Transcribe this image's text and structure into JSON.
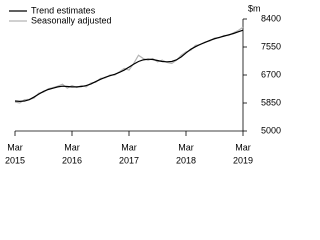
{
  "chart_data": {
    "type": "line",
    "y_label": "$m",
    "categories": [
      [
        "Mar",
        "2015"
      ],
      null,
      null,
      null,
      null,
      null,
      null,
      null,
      null,
      null,
      null,
      null,
      [
        "Mar",
        "2016"
      ],
      null,
      null,
      null,
      null,
      null,
      null,
      null,
      null,
      null,
      null,
      null,
      [
        "Mar",
        "2017"
      ],
      null,
      null,
      null,
      null,
      null,
      null,
      null,
      null,
      null,
      null,
      null,
      [
        "Mar",
        "2018"
      ],
      null,
      null,
      null,
      null,
      null,
      null,
      null,
      null,
      null,
      null,
      null,
      [
        "Mar",
        "2019"
      ]
    ],
    "series": [
      {
        "name": "Trend estimates",
        "color": "#000000",
        "values": [
          5910,
          5900,
          5910,
          5950,
          6030,
          6120,
          6200,
          6260,
          6300,
          6340,
          6360,
          6350,
          6340,
          6340,
          6350,
          6380,
          6430,
          6500,
          6570,
          6630,
          6680,
          6720,
          6780,
          6850,
          6940,
          7030,
          7110,
          7160,
          7180,
          7170,
          7140,
          7110,
          7100,
          7110,
          7160,
          7250,
          7370,
          7480,
          7560,
          7630,
          7690,
          7750,
          7800,
          7840,
          7880,
          7920,
          7960,
          8010,
          8060
        ]
      },
      {
        "name": "Seasonally adjusted",
        "color": "#b4b4b4",
        "values": [
          5880,
          5850,
          5950,
          5960,
          6000,
          6150,
          6180,
          6280,
          6320,
          6360,
          6420,
          6300,
          6380,
          6320,
          6380,
          6340,
          6460,
          6480,
          6600,
          6610,
          6700,
          6700,
          6800,
          6900,
          6850,
          7050,
          7300,
          7200,
          7150,
          7200,
          7100,
          7150,
          7080,
          7050,
          7150,
          7300,
          7400,
          7450,
          7600,
          7620,
          7700,
          7730,
          7820,
          7830,
          7900,
          7900,
          7980,
          8050,
          8150
        ]
      }
    ],
    "ylim": [
      5000,
      8400
    ],
    "yticks": [
      5000,
      5850,
      6700,
      7550,
      8400
    ],
    "legend": "top-left"
  }
}
